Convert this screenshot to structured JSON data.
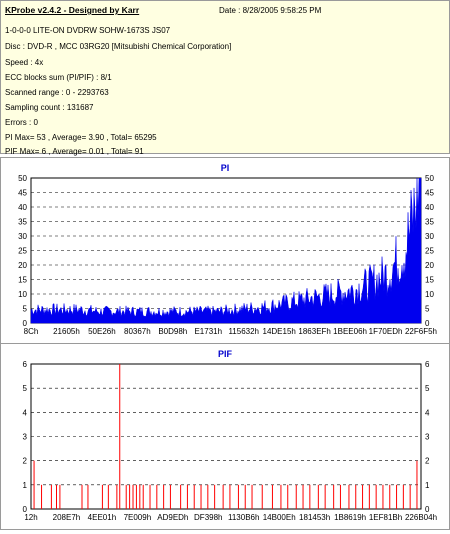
{
  "header": {
    "title": "KProbe v2.4.2 - Designed by Karr",
    "date": "Date : 8/28/2005 9:58:25 PM",
    "lines": [
      "1-0-0-0 LITE-ON DVDRW SOHW-1673S JS07",
      "Disc : DVD-R , MCC 03RG20  [Mitsubishi Chemical Corporation]",
      "Speed : 4x",
      "ECC blocks sum (PI/PIF) : 8/1",
      "Scanned range : 0 - 2293763",
      "Sampling count : 131687",
      "Errors : 0",
      "PI Max= 53 , Average= 3.90 , Total= 65295",
      "PIF Max= 6 , Average= 0.01 , Total= 91"
    ]
  },
  "colors": {
    "pi_fill": "#0000ee",
    "pif_bar": "#ff0000",
    "header_bg": "#ffffe1",
    "chart_title": "#0000cc"
  },
  "chart_data": [
    {
      "type": "area",
      "title": "PI",
      "ylim": [
        0,
        50
      ],
      "yticks": [
        "0",
        "5",
        "10",
        "15",
        "20",
        "25",
        "30",
        "35",
        "40",
        "45",
        "50"
      ],
      "xticks": [
        "8Ch",
        "21605h",
        "50E26h",
        "80367h",
        "B0D98h",
        "E1731h",
        "115632h",
        "14DE15h",
        "1863EFh",
        "1BEE06h",
        "1F70EDh",
        "22F6F5h"
      ],
      "x_range": [
        0,
        2293763
      ],
      "points": [
        [
          0,
          4
        ],
        [
          100000,
          4
        ],
        [
          200000,
          4
        ],
        [
          300000,
          4
        ],
        [
          400000,
          3.5
        ],
        [
          500000,
          3.5
        ],
        [
          600000,
          3.5
        ],
        [
          700000,
          3.5
        ],
        [
          800000,
          3.5
        ],
        [
          900000,
          3.5
        ],
        [
          1000000,
          3.5
        ],
        [
          1100000,
          3.5
        ],
        [
          1200000,
          4
        ],
        [
          1300000,
          4.5
        ],
        [
          1400000,
          5
        ],
        [
          1500000,
          6
        ],
        [
          1600000,
          7
        ],
        [
          1700000,
          8
        ],
        [
          1800000,
          9
        ],
        [
          1900000,
          10
        ],
        [
          2000000,
          12
        ],
        [
          2100000,
          15
        ],
        [
          2200000,
          22
        ],
        [
          2250000,
          32
        ],
        [
          2293763,
          48
        ]
      ],
      "max": 53
    },
    {
      "type": "bar",
      "title": "PIF",
      "ylim": [
        0,
        6
      ],
      "yticks": [
        "0",
        "1",
        "2",
        "3",
        "4",
        "5",
        "6"
      ],
      "xticks": [
        "12h",
        "208E7h",
        "4EE01h",
        "7E009h",
        "AD9EDh",
        "DF398h",
        "1130B6h",
        "14B00Eh",
        "181453h",
        "1B8619h",
        "1EF81Bh",
        "226B04h"
      ],
      "x_range": [
        0,
        2293763
      ],
      "events": [
        [
          18000,
          2
        ],
        [
          62000,
          1
        ],
        [
          120000,
          1
        ],
        [
          150000,
          1
        ],
        [
          170000,
          1
        ],
        [
          300000,
          1
        ],
        [
          335000,
          1
        ],
        [
          420000,
          1
        ],
        [
          455000,
          1
        ],
        [
          505000,
          1
        ],
        [
          522000,
          6
        ],
        [
          560000,
          1
        ],
        [
          580000,
          1
        ],
        [
          600000,
          1
        ],
        [
          620000,
          1
        ],
        [
          640000,
          1
        ],
        [
          660000,
          1
        ],
        [
          700000,
          1
        ],
        [
          740000,
          1
        ],
        [
          780000,
          1
        ],
        [
          820000,
          1
        ],
        [
          880000,
          1
        ],
        [
          920000,
          1
        ],
        [
          960000,
          1
        ],
        [
          1000000,
          1
        ],
        [
          1040000,
          1
        ],
        [
          1080000,
          1
        ],
        [
          1130000,
          1
        ],
        [
          1170000,
          1
        ],
        [
          1220000,
          1
        ],
        [
          1260000,
          1
        ],
        [
          1300000,
          1
        ],
        [
          1360000,
          1
        ],
        [
          1420000,
          1
        ],
        [
          1470000,
          1
        ],
        [
          1510000,
          1
        ],
        [
          1560000,
          1
        ],
        [
          1600000,
          1
        ],
        [
          1640000,
          1
        ],
        [
          1690000,
          1
        ],
        [
          1730000,
          1
        ],
        [
          1780000,
          1
        ],
        [
          1820000,
          1
        ],
        [
          1870000,
          1
        ],
        [
          1910000,
          1
        ],
        [
          1950000,
          1
        ],
        [
          1990000,
          1
        ],
        [
          2030000,
          1
        ],
        [
          2070000,
          1
        ],
        [
          2110000,
          1
        ],
        [
          2150000,
          1
        ],
        [
          2190000,
          1
        ],
        [
          2230000,
          1
        ],
        [
          2270000,
          2
        ]
      ]
    }
  ]
}
